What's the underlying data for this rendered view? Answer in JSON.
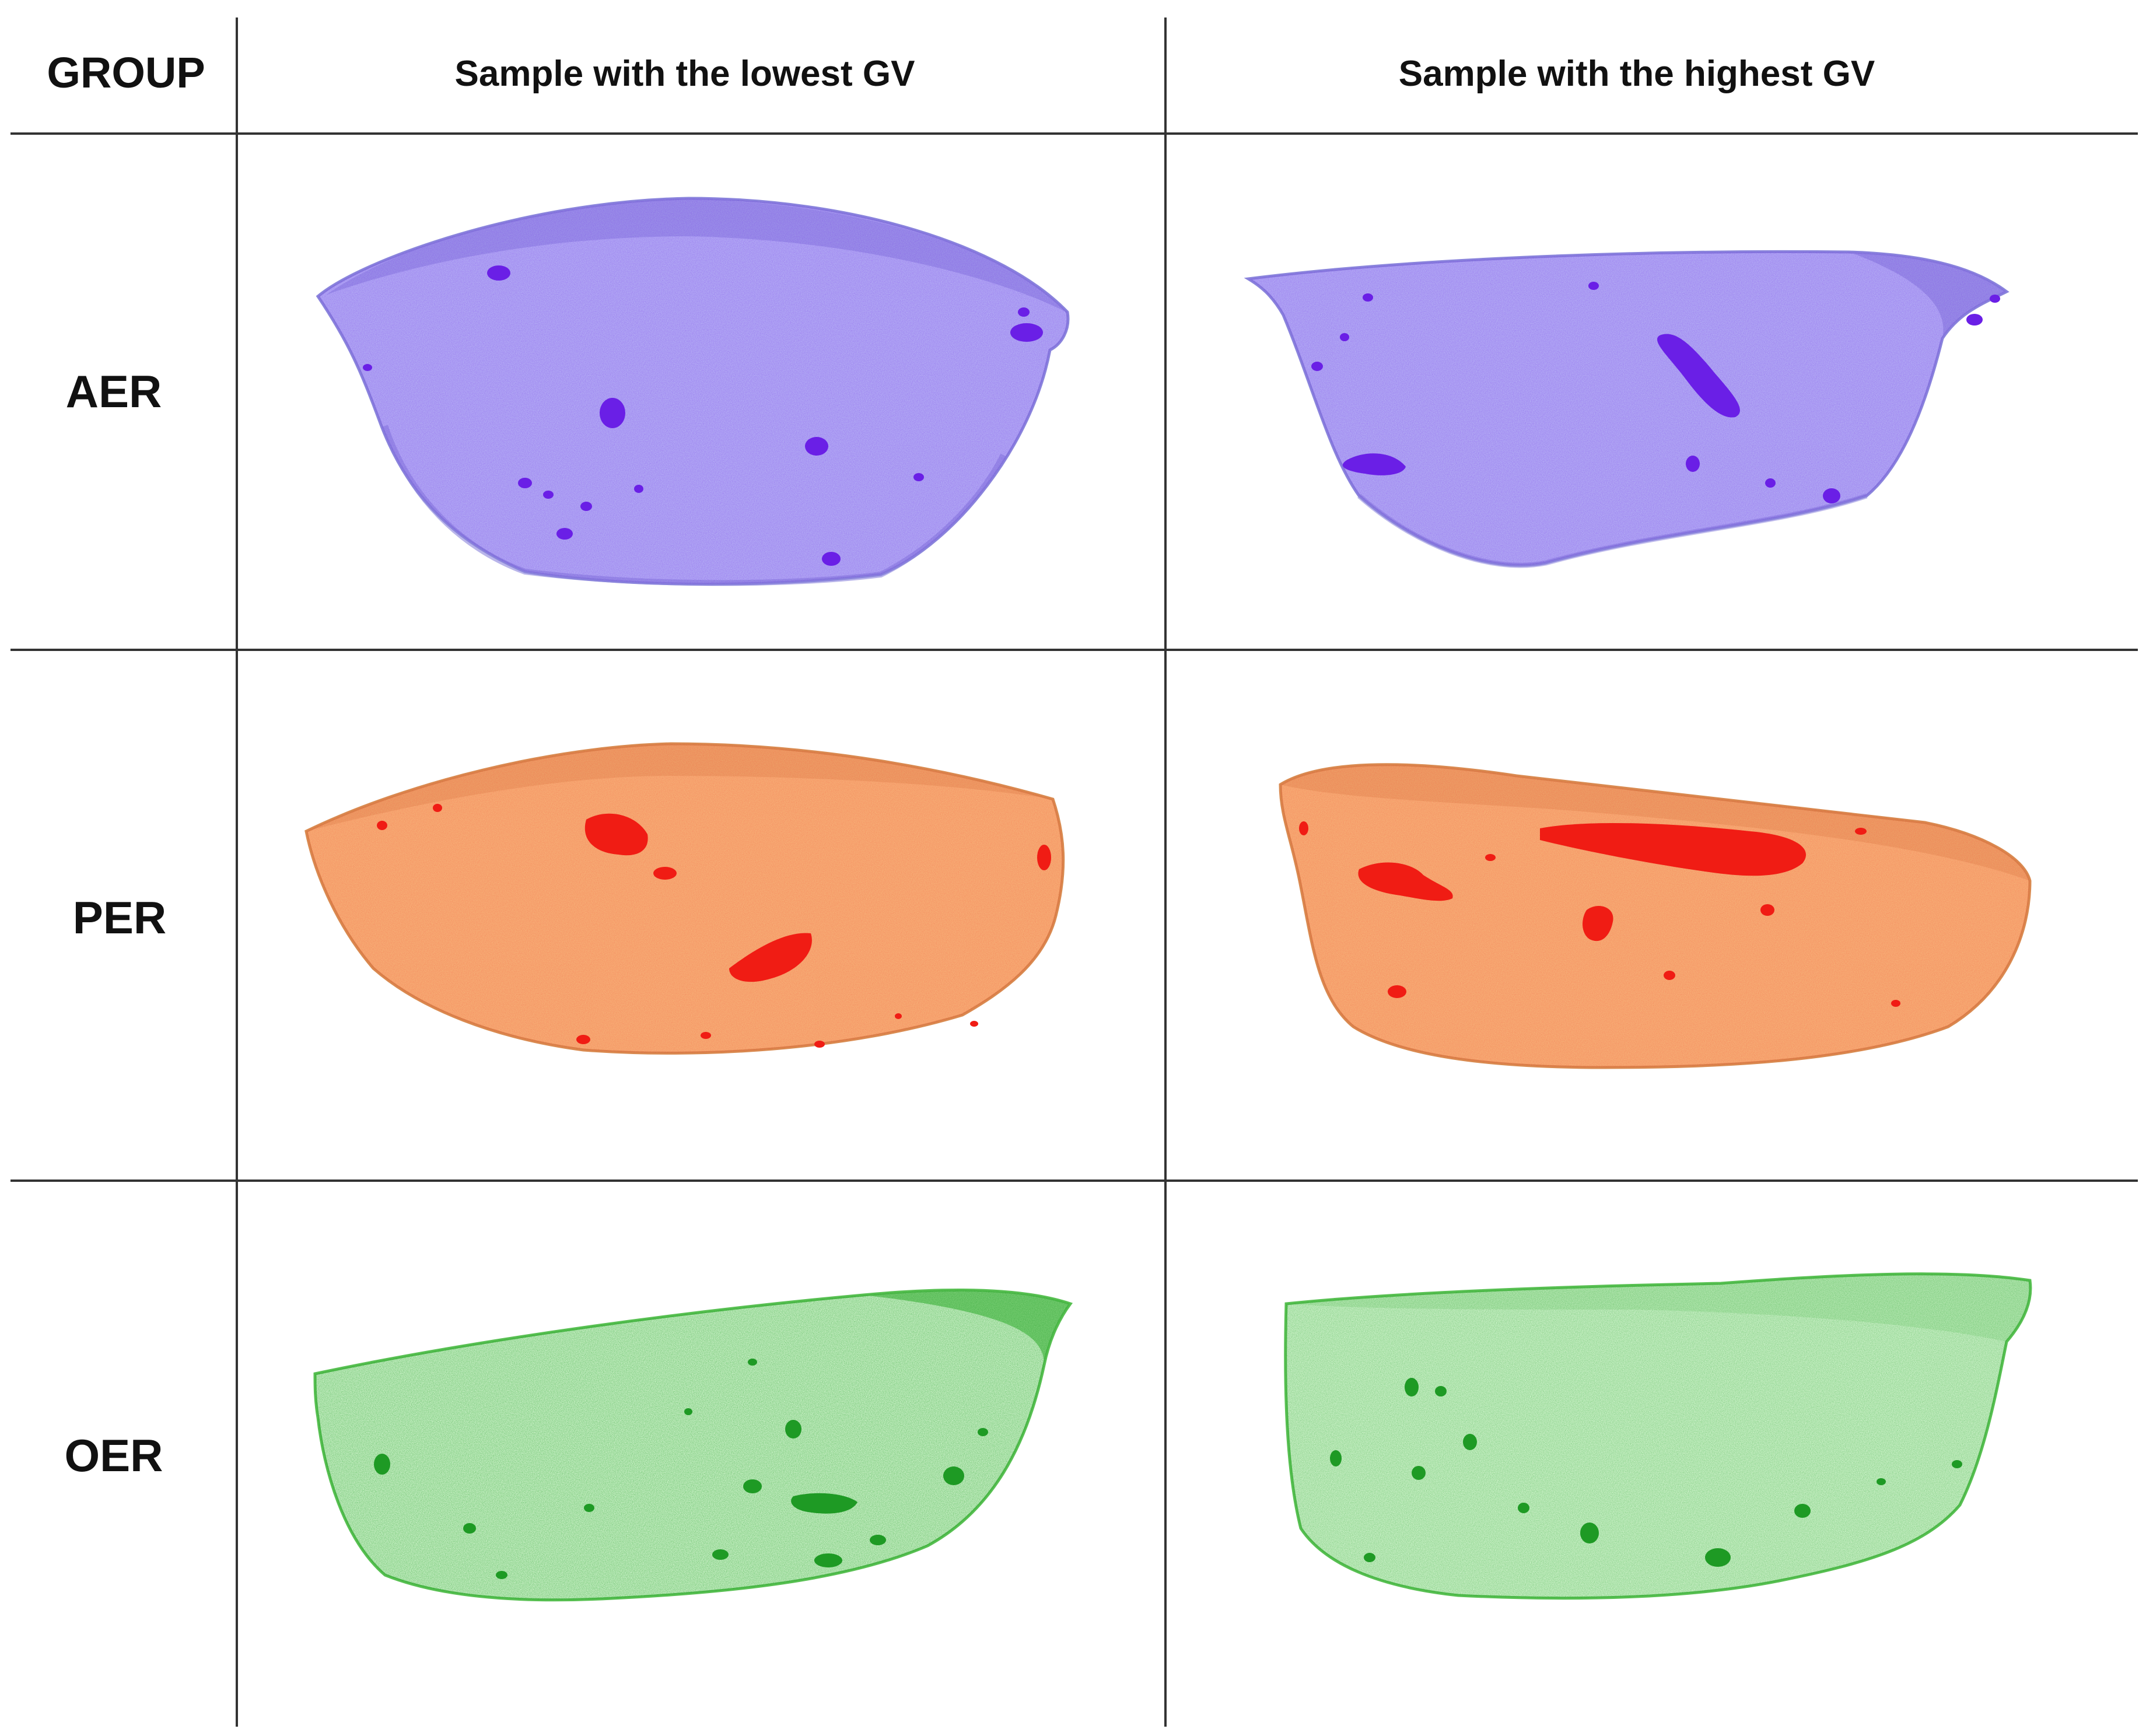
{
  "header": {
    "group_label": "GROUP",
    "col_lowest": "Sample with the lowest GV",
    "col_highest": "Sample with the highest GV"
  },
  "rows": [
    {
      "label": "AER",
      "body_color": "#b6b2f5",
      "defect_color": "#6a1fe6",
      "edge_color": "#8a84dc"
    },
    {
      "label": "PER",
      "body_color": "#f7b47a",
      "defect_color": "#f01c14",
      "edge_color": "#d98a50"
    },
    {
      "label": "OER",
      "body_color": "#d6f7d2",
      "defect_color": "#1e9a24",
      "edge_color": "#58c052"
    }
  ]
}
